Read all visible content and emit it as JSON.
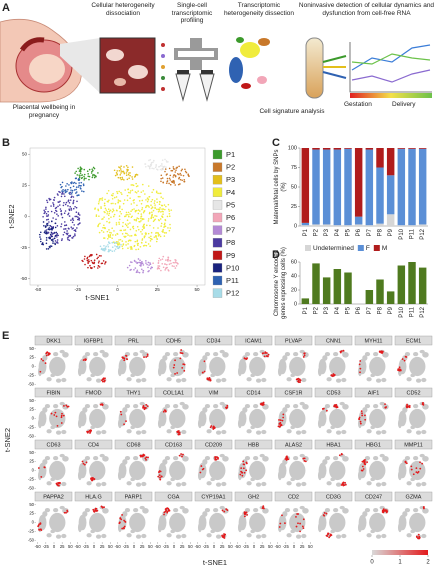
{
  "panel_labels": [
    "A",
    "B",
    "C",
    "D",
    "E"
  ],
  "panel_a": {
    "steps": [
      "Placental wellbeing in pregnancy",
      "Cellular heterogeneity dissociation",
      "Single-cell transcriptomic profiling",
      "Transcriptomic heterogeneity dissection",
      "Cell signature analysis",
      "Noninvasive detection of cellular dynamics and dysfunction from cell-free RNA"
    ],
    "timeline": [
      "Gestation",
      "Delivery"
    ]
  },
  "chart_data": [
    {
      "type": "cluster-map",
      "xlabel": "t-SNE1",
      "ylabel": "t-SNE2",
      "xlim": [
        -55,
        55
      ],
      "ylim": [
        -55,
        55
      ],
      "xticks": [
        -50,
        -25,
        0,
        25,
        50
      ],
      "yticks": [
        -50,
        -25,
        0,
        25,
        50
      ],
      "clusters": [
        {
          "name": "P1",
          "color": "#3c9a2c"
        },
        {
          "name": "P2",
          "color": "#c8782a"
        },
        {
          "name": "P3",
          "color": "#e3bf1c"
        },
        {
          "name": "P4",
          "color": "#f0ec3c"
        },
        {
          "name": "P5",
          "color": "#e6e6e6"
        },
        {
          "name": "P6",
          "color": "#f2a6b8"
        },
        {
          "name": "P7",
          "color": "#b48ad6"
        },
        {
          "name": "P8",
          "color": "#4b3aa0"
        },
        {
          "name": "P9",
          "color": "#c01818"
        },
        {
          "name": "P10",
          "color": "#1a237e"
        },
        {
          "name": "P11",
          "color": "#2f62b2"
        },
        {
          "name": "P12",
          "color": "#a8dce8"
        }
      ]
    },
    {
      "type": "bar",
      "stacked": true,
      "ylabel": "Maternal/fetal cells by SNPs (%)",
      "categories": [
        "P1",
        "P2",
        "P3",
        "P4",
        "P5",
        "P6",
        "P7",
        "P8",
        "P9",
        "P10",
        "P11",
        "P12"
      ],
      "series": [
        {
          "name": "Undetermined",
          "color": "#d6d6d6",
          "values": [
            1,
            2,
            2,
            1,
            1,
            2,
            1,
            3,
            15,
            1,
            1,
            2
          ]
        },
        {
          "name": "F",
          "color": "#5b8fd6",
          "values": [
            3,
            96,
            96,
            97,
            98,
            10,
            97,
            72,
            50,
            98,
            98,
            97
          ]
        },
        {
          "name": "M",
          "color": "#b01c1c",
          "values": [
            96,
            2,
            2,
            2,
            1,
            88,
            2,
            25,
            35,
            1,
            1,
            1
          ]
        }
      ],
      "ylim": [
        0,
        100
      ],
      "yticks": [
        0,
        25,
        50,
        75,
        100
      ],
      "legend": "bottom"
    },
    {
      "type": "bar",
      "ylabel": "Chromosome Y encoded genes expressing cells (%)",
      "categories": [
        "P1",
        "P2",
        "P3",
        "P4",
        "P5",
        "P6",
        "P7",
        "P8",
        "P9",
        "P10",
        "P11",
        "P12"
      ],
      "values": [
        8,
        58,
        38,
        50,
        45,
        0,
        20,
        35,
        18,
        55,
        60,
        52
      ],
      "color": "#4f7a1f",
      "ylim": [
        0,
        60
      ],
      "yticks": [
        0,
        20,
        40,
        60
      ]
    }
  ],
  "panel_e": {
    "genes": [
      "DKK1",
      "IGFBP1",
      "PRL",
      "CDH5",
      "CD34",
      "ICAM1",
      "PLVAP",
      "CNN1",
      "MYH11",
      "ECM1",
      "FIBIN",
      "FMOD",
      "THY1",
      "COL1A1",
      "VIM",
      "CD14",
      "CSF1R",
      "CD53",
      "AIF1",
      "CD52",
      "CD63",
      "CD4",
      "CD68",
      "CD163",
      "CD209",
      "HBB",
      "ALAS2",
      "HBA1",
      "HBG1",
      "MMP11",
      "PAPPA2",
      "HLA.G",
      "PARP1",
      "CGA",
      "CYP19A1",
      "GH2",
      "CD2",
      "CD3G",
      "CD247",
      "GZMA"
    ],
    "xlabel": "t-SNE1",
    "ylabel": "t-SNE2",
    "xlim": [
      -55,
      55
    ],
    "ylim": [
      -55,
      55
    ],
    "xticks": [
      -50,
      -25,
      0,
      25,
      50
    ],
    "yticks": [
      -50,
      -25,
      0,
      25,
      50
    ],
    "colorbar": {
      "lim": [
        0,
        2
      ],
      "ticks": [
        0,
        1,
        2
      ],
      "colors": [
        "#d9d9d9",
        "#e31a1c"
      ]
    }
  }
}
